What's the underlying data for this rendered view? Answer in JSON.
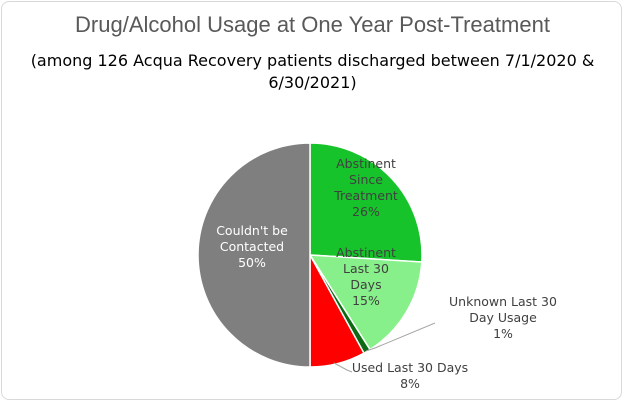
{
  "chart_data": {
    "type": "pie",
    "title": "Drug/Alcohol Usage at One Year Post-Treatment",
    "subtitle": "(among 126 Acqua Recovery patients discharged between 7/1/2020 & 6/30/2021)",
    "slices": [
      {
        "label_lines": [
          "Abstinent",
          "Since",
          "Treatment"
        ],
        "pct_label": "26%",
        "value": 26,
        "color": "#17c32b",
        "label_color": "#404040"
      },
      {
        "label_lines": [
          "Abstinent",
          "Last 30",
          "Days"
        ],
        "pct_label": "15%",
        "value": 15,
        "color": "#88f08a",
        "label_color": "#404040"
      },
      {
        "label_lines": [
          "Unknown Last 30",
          "Day Usage"
        ],
        "pct_label": "1%",
        "value": 1,
        "color": "#0b6b12",
        "label_color": "#404040"
      },
      {
        "label_lines": [
          "Used Last 30 Days"
        ],
        "pct_label": "8%",
        "value": 8,
        "color": "#ff0000",
        "label_color": "#404040"
      },
      {
        "label_lines": [
          "Couldn't be",
          "Contacted"
        ],
        "pct_label": "50%",
        "value": 50,
        "color": "#7f7f7f",
        "label_color": "#ffffff"
      }
    ]
  }
}
